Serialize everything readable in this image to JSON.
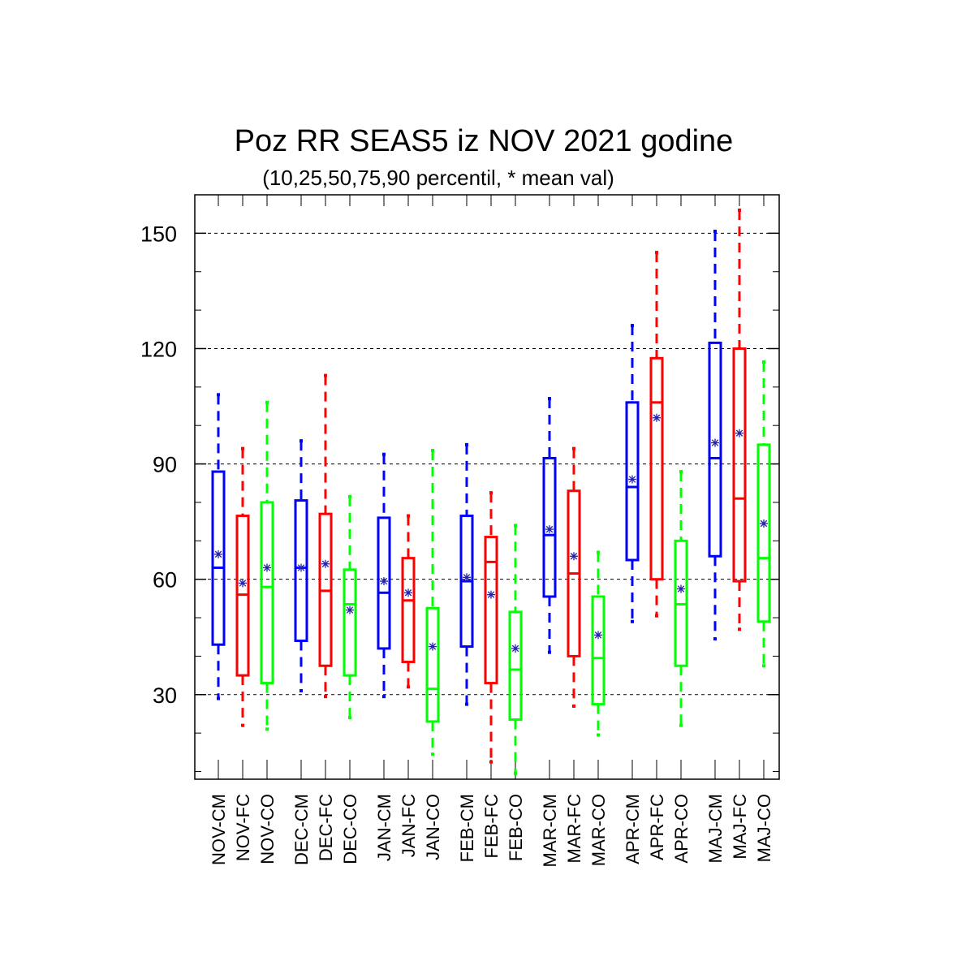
{
  "chart_data": {
    "type": "boxplot",
    "title": "Poz RR SEAS5 iz NOV 2021 godine",
    "subtitle": "(10,25,50,75,90 percentil, * mean val)",
    "xlabel": "",
    "ylabel": "",
    "ylim": [
      8,
      160
    ],
    "yticks": [
      30,
      60,
      90,
      120,
      150
    ],
    "grid": "horizontal dashed at major ticks",
    "series_colors": {
      "CM": "#0000ff",
      "FC": "#ff0000",
      "CO": "#00ff00"
    },
    "mean_marker_color": "#2222aa",
    "groups": [
      {
        "month": "NOV",
        "boxes": [
          {
            "label": "NOV-CM",
            "series": "CM",
            "p10": 29,
            "p25": 43,
            "p50": 63,
            "p75": 88,
            "p90": 108,
            "mean": 66.5
          },
          {
            "label": "NOV-FC",
            "series": "FC",
            "p10": 22,
            "p25": 35,
            "p50": 56,
            "p75": 76.5,
            "p90": 94,
            "mean": 59
          },
          {
            "label": "NOV-CO",
            "series": "CO",
            "p10": 21,
            "p25": 33,
            "p50": 58,
            "p75": 80,
            "p90": 106,
            "mean": 63
          }
        ]
      },
      {
        "month": "DEC",
        "boxes": [
          {
            "label": "DEC-CM",
            "series": "CM",
            "p10": 31,
            "p25": 44,
            "p50": 63,
            "p75": 80.5,
            "p90": 96,
            "mean": 63
          },
          {
            "label": "DEC-FC",
            "series": "FC",
            "p10": 29.5,
            "p25": 37.5,
            "p50": 57,
            "p75": 77,
            "p90": 113,
            "mean": 64
          },
          {
            "label": "DEC-CO",
            "series": "CO",
            "p10": 24,
            "p25": 35,
            "p50": 53.5,
            "p75": 62.5,
            "p90": 81.5,
            "mean": 52
          }
        ]
      },
      {
        "month": "JAN",
        "boxes": [
          {
            "label": "JAN-CM",
            "series": "CM",
            "p10": 29.5,
            "p25": 42,
            "p50": 56.5,
            "p75": 76,
            "p90": 92.5,
            "mean": 59.5
          },
          {
            "label": "JAN-FC",
            "series": "FC",
            "p10": 32,
            "p25": 38.5,
            "p50": 54.5,
            "p75": 65.5,
            "p90": 76.5,
            "mean": 56.5
          },
          {
            "label": "JAN-CO",
            "series": "CO",
            "p10": 14.5,
            "p25": 23,
            "p50": 31.5,
            "p75": 52.5,
            "p90": 93.5,
            "mean": 42.5
          }
        ]
      },
      {
        "month": "FEB",
        "boxes": [
          {
            "label": "FEB-CM",
            "series": "CM",
            "p10": 27.5,
            "p25": 42.5,
            "p50": 59.5,
            "p75": 76.5,
            "p90": 95,
            "mean": 60.5
          },
          {
            "label": "FEB-FC",
            "series": "FC",
            "p10": 12.5,
            "p25": 33,
            "p50": 64.5,
            "p75": 71,
            "p90": 82.5,
            "mean": 56
          },
          {
            "label": "FEB-CO",
            "series": "CO",
            "p10": 9.5,
            "p25": 23.5,
            "p50": 36.5,
            "p75": 51.5,
            "p90": 74,
            "mean": 42
          }
        ]
      },
      {
        "month": "MAR",
        "boxes": [
          {
            "label": "MAR-CM",
            "series": "CM",
            "p10": 41,
            "p25": 55.5,
            "p50": 71.5,
            "p75": 91.5,
            "p90": 107,
            "mean": 73
          },
          {
            "label": "MAR-FC",
            "series": "FC",
            "p10": 27,
            "p25": 40,
            "p50": 61.5,
            "p75": 83,
            "p90": 94,
            "mean": 66
          },
          {
            "label": "MAR-CO",
            "series": "CO",
            "p10": 19.5,
            "p25": 27.5,
            "p50": 39.5,
            "p75": 55.5,
            "p90": 67,
            "mean": 45.5
          }
        ]
      },
      {
        "month": "APR",
        "boxes": [
          {
            "label": "APR-CM",
            "series": "CM",
            "p10": 49,
            "p25": 65,
            "p50": 84,
            "p75": 106,
            "p90": 126,
            "mean": 86
          },
          {
            "label": "APR-FC",
            "series": "FC",
            "p10": 50.5,
            "p25": 60,
            "p50": 106,
            "p75": 117.5,
            "p90": 145,
            "mean": 102
          },
          {
            "label": "APR-CO",
            "series": "CO",
            "p10": 22,
            "p25": 37.5,
            "p50": 53.5,
            "p75": 70,
            "p90": 88,
            "mean": 57.5
          }
        ]
      },
      {
        "month": "MAJ",
        "boxes": [
          {
            "label": "MAJ-CM",
            "series": "CM",
            "p10": 44.5,
            "p25": 66,
            "p50": 91.5,
            "p75": 121.5,
            "p90": 150.5,
            "mean": 95.5
          },
          {
            "label": "MAJ-FC",
            "series": "FC",
            "p10": 47,
            "p25": 59.5,
            "p50": 81,
            "p75": 120,
            "p90": 156,
            "mean": 98
          },
          {
            "label": "MAJ-CO",
            "series": "CO",
            "p10": 37.5,
            "p25": 49,
            "p50": 65.5,
            "p75": 95,
            "p90": 116.5,
            "mean": 74.5
          }
        ]
      }
    ]
  }
}
